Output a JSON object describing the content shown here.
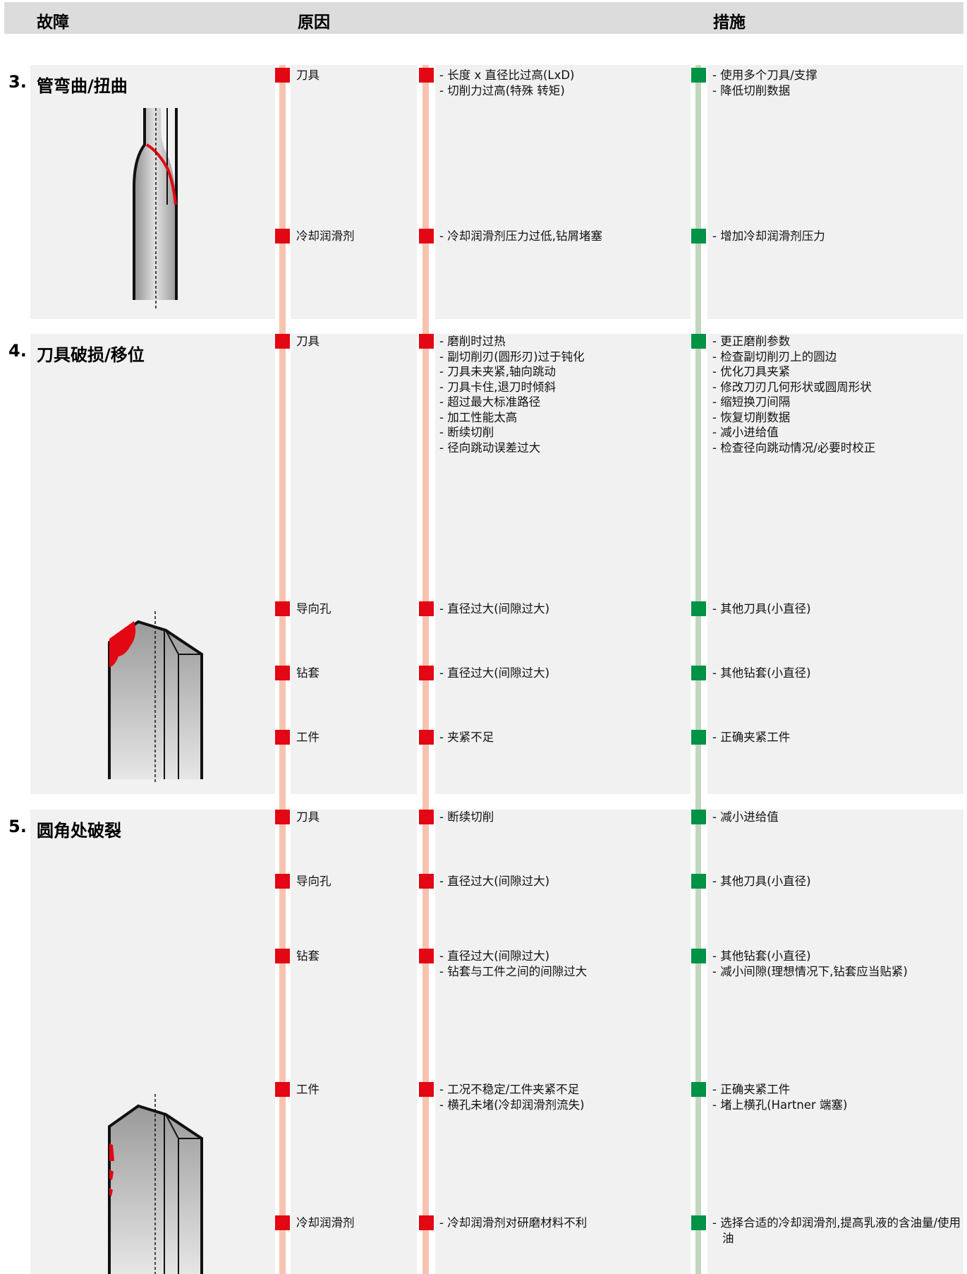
{
  "header": {
    "fault": "故障",
    "cause": "原因",
    "measure": "措施"
  },
  "sections": [
    {
      "number": "3.",
      "title": "管弯曲/扭曲",
      "rows": [
        {
          "cause": "刀具",
          "reasons": [
            "- 长度 x 直径比过高(LxD)",
            "- 切削力过高(特殊 转矩)"
          ],
          "measures": [
            "- 使用多个刀具/支撑",
            "- 降低切削数据"
          ]
        },
        {
          "cause": "冷却润滑剂",
          "reasons": [
            "- 冷却润滑剂压力过低,钻屑堵塞"
          ],
          "measures": [
            "- 增加冷却润滑剂压力"
          ]
        }
      ]
    },
    {
      "number": "4.",
      "title": "刀具破损/移位",
      "rows": [
        {
          "cause": "刀具",
          "reasons": [
            "- 磨削时过热",
            "- 副切削刃(圆形刃)过于钝化",
            "- 刀具未夹紧,轴向跳动",
            "- 刀具卡住,退刀时倾斜",
            "- 超过最大标准路径",
            "- 加工性能太高",
            "- 断续切削",
            "- 径向跳动误差过大"
          ],
          "measures": [
            "- 更正磨削参数",
            "- 检查副切削刃上的圆边",
            "- 优化刀具夹紧",
            "- 修改刀刃几何形状或圆周形状",
            "- 缩短换刀间隔",
            "- 恢复切削数据",
            "- 减小进给值",
            "- 检查径向跳动情况/必要时校正"
          ]
        },
        {
          "cause": "导向孔",
          "reasons": [
            "- 直径过大(间隙过大)"
          ],
          "measures": [
            "- 其他刀具(小直径)"
          ]
        },
        {
          "cause": "钻套",
          "reasons": [
            "- 直径过大(间隙过大)"
          ],
          "measures": [
            "- 其他钻套(小直径)"
          ]
        },
        {
          "cause": "工件",
          "reasons": [
            "- 夹紧不足"
          ],
          "measures": [
            "- 正确夹紧工件"
          ]
        }
      ]
    },
    {
      "number": "5.",
      "title": "圆角处破裂",
      "rows": [
        {
          "cause": "刀具",
          "reasons": [
            "- 断续切削"
          ],
          "measures": [
            "- 减小进给值"
          ]
        },
        {
          "cause": "导向孔",
          "reasons": [
            "- 直径过大(间隙过大)"
          ],
          "measures": [
            "- 其他刀具(小直径)"
          ]
        },
        {
          "cause": "钻套",
          "reasons": [
            "- 直径过大(间隙过大)",
            "- 钻套与工件之间的间隙过大"
          ],
          "measures": [
            "- 其他钻套(小直径)",
            "- 减小间隙(理想情况下,钻套应当贴紧)"
          ]
        },
        {
          "cause": "工件",
          "reasons": [
            "- 工况不稳定/工件夹紧不足",
            "- 横孔未堵(冷却润滑剂流失)"
          ],
          "measures": [
            "- 正确夹紧工件",
            "- 堵上横孔(Hartner 端塞)"
          ]
        },
        {
          "cause": "冷却润滑剂",
          "reasons": [
            "- 冷却润滑剂对研磨材料不利"
          ],
          "measures": [
            "- 选择合适的冷却润滑剂,提高乳液的含油量/使用油"
          ]
        }
      ]
    }
  ]
}
